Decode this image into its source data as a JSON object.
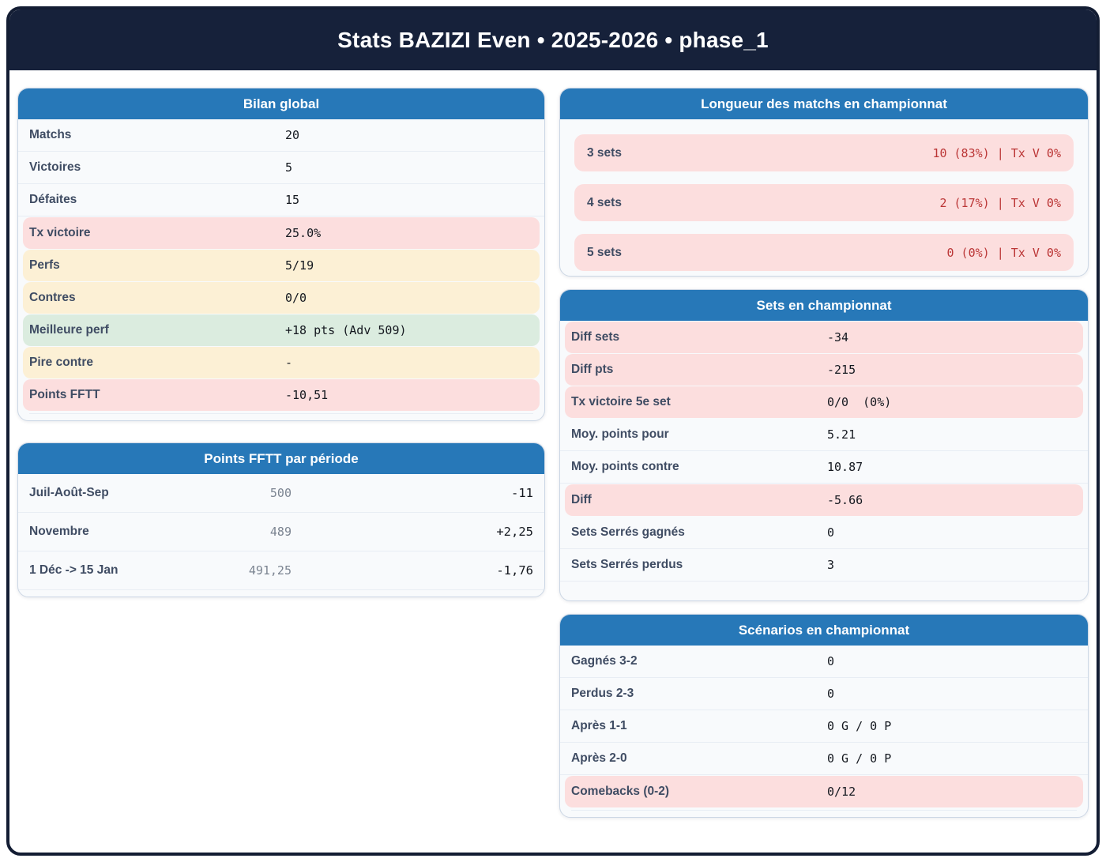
{
  "colors": {
    "frame_border": "#131d33",
    "titlebar_bg": "#16213a",
    "card_header_bg": "#2778b8",
    "row_pink": "#fcdede",
    "row_cream": "#fcf0d5",
    "row_green": "#dbecdf",
    "value_red": "#bb3636",
    "label_slate": "#3f4c63"
  },
  "header": {
    "title": "Stats BAZIZI Even • 2025-2026 • phase_1"
  },
  "bilan": {
    "title": "Bilan global",
    "rows": [
      {
        "label": "Matchs",
        "value": "20",
        "tone": "plain"
      },
      {
        "label": "Victoires",
        "value": "5",
        "tone": "plain"
      },
      {
        "label": "Défaites",
        "value": "15",
        "tone": "plain"
      },
      {
        "label": "Tx victoire",
        "value": "25.0%",
        "tone": "pink"
      },
      {
        "label": "Perfs",
        "value": "5/19",
        "tone": "cream"
      },
      {
        "label": "Contres",
        "value": "0/0",
        "tone": "cream"
      },
      {
        "label": "Meilleure perf",
        "value": "+18 pts (Adv 509)",
        "tone": "green"
      },
      {
        "label": "Pire contre",
        "value": "-",
        "tone": "cream"
      },
      {
        "label": "Points FFTT",
        "value": "-10,51",
        "tone": "pink"
      }
    ]
  },
  "points_periode": {
    "title": "Points FFTT par période",
    "rows": [
      {
        "label": "Juil-Août-Sep",
        "value": "500",
        "delta": "-11"
      },
      {
        "label": "Novembre",
        "value": "489",
        "delta": "+2,25"
      },
      {
        "label": "1 Déc -> 15 Jan",
        "value": "491,25",
        "delta": "-1,76"
      }
    ]
  },
  "longueur": {
    "title": "Longueur des matchs en championnat",
    "rows": [
      {
        "label": "3 sets",
        "value": "10 (83%) | Tx V 0%"
      },
      {
        "label": "4 sets",
        "value": "2 (17%) | Tx V 0%"
      },
      {
        "label": "5 sets",
        "value": "0 (0%) | Tx V 0%"
      }
    ]
  },
  "sets": {
    "title": "Sets en championnat",
    "rows": [
      {
        "label": "Diff sets",
        "value": "-34",
        "tone": "pink"
      },
      {
        "label": "Diff pts",
        "value": "-215",
        "tone": "pink"
      },
      {
        "label": "Tx victoire 5e set",
        "value": "0/0  (0%)",
        "tone": "pink"
      },
      {
        "label": "Moy. points pour",
        "value": "5.21",
        "tone": "plain"
      },
      {
        "label": "Moy. points contre",
        "value": "10.87",
        "tone": "plain"
      },
      {
        "label": "Diff",
        "value": "-5.66",
        "tone": "pink"
      },
      {
        "label": "Sets Serrés gagnés",
        "value": "0",
        "tone": "plain"
      },
      {
        "label": "Sets Serrés perdus",
        "value": "3",
        "tone": "plain"
      }
    ]
  },
  "scenarios": {
    "title": "Scénarios en championnat",
    "rows": [
      {
        "label": "Gagnés 3-2",
        "value": "0",
        "tone": "plain"
      },
      {
        "label": "Perdus 2-3",
        "value": "0",
        "tone": "plain"
      },
      {
        "label": "Après 1-1",
        "value": "0 G / 0 P",
        "tone": "plain"
      },
      {
        "label": "Après 2-0",
        "value": "0 G / 0 P",
        "tone": "plain"
      },
      {
        "label": "Comebacks (0-2)",
        "value": "0/12",
        "tone": "pink"
      }
    ]
  }
}
